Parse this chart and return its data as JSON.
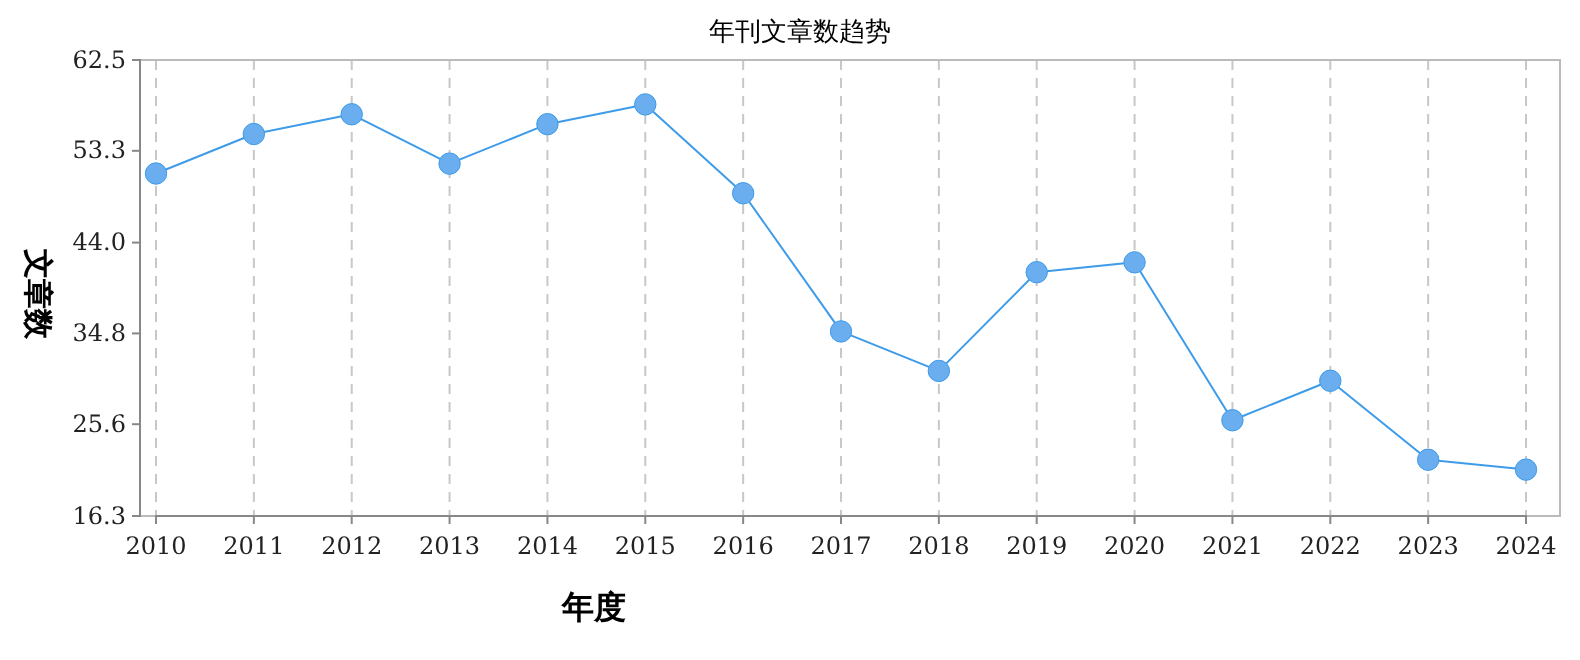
{
  "chart_data": {
    "type": "line",
    "title": "年刊文章数趋势",
    "xlabel": "年度",
    "ylabel": "文章数",
    "categories": [
      "2010",
      "2011",
      "2012",
      "2013",
      "2014",
      "2015",
      "2016",
      "2017",
      "2018",
      "2019",
      "2020",
      "2021",
      "2022",
      "2023",
      "2024"
    ],
    "series": [
      {
        "color": "#3d9be9",
        "values": [
          51,
          55,
          57,
          52,
          56,
          58,
          49,
          35,
          31,
          41,
          42,
          26,
          30,
          22,
          21
        ]
      }
    ],
    "ylim": [
      16.3,
      62.5
    ],
    "yticks": [
      16.3,
      25.6,
      34.8,
      {
        "value": 44,
        "label": "44.0"
      },
      53.3,
      62.5
    ],
    "grid": "x",
    "marker": "circle",
    "line_style": "solid"
  }
}
